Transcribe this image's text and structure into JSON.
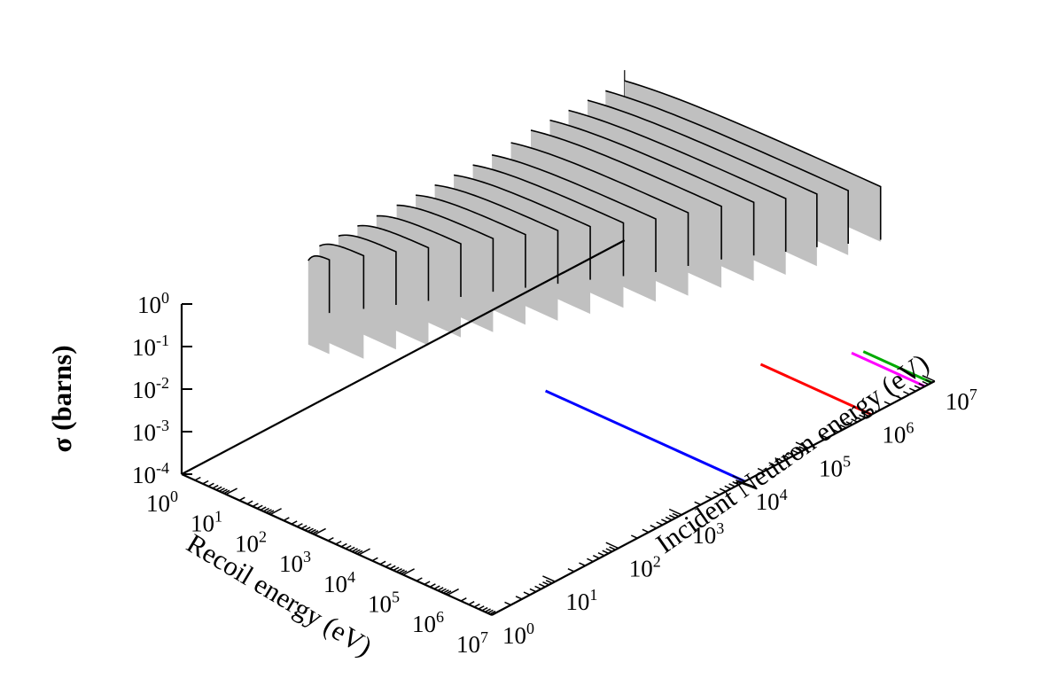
{
  "chart_data": {
    "type": "area",
    "title": "",
    "zlabel": "σ (barns)",
    "xlabel": "Recoil energy (eV)",
    "ylabel": "Incident Neutron energy (eV)",
    "scale": "log10",
    "x_range": [
      1,
      10000000
    ],
    "y_range": [
      1,
      10000000
    ],
    "z_range": [
      0.0001,
      1
    ],
    "x_ticks": [
      {
        "base": "10",
        "exp": "0"
      },
      {
        "base": "10",
        "exp": "1"
      },
      {
        "base": "10",
        "exp": "2"
      },
      {
        "base": "10",
        "exp": "3"
      },
      {
        "base": "10",
        "exp": "4"
      },
      {
        "base": "10",
        "exp": "5"
      },
      {
        "base": "10",
        "exp": "6"
      },
      {
        "base": "10",
        "exp": "7"
      }
    ],
    "y_ticks": [
      {
        "base": "10",
        "exp": "0"
      },
      {
        "base": "10",
        "exp": "1"
      },
      {
        "base": "10",
        "exp": "2"
      },
      {
        "base": "10",
        "exp": "3"
      },
      {
        "base": "10",
        "exp": "4"
      },
      {
        "base": "10",
        "exp": "5"
      },
      {
        "base": "10",
        "exp": "6"
      },
      {
        "base": "10",
        "exp": "7"
      }
    ],
    "z_ticks": [
      {
        "base": "10",
        "exp": "-4"
      },
      {
        "base": "10",
        "exp": "-3"
      },
      {
        "base": "10",
        "exp": "-2"
      },
      {
        "base": "10",
        "exp": "-1"
      },
      {
        "base": "10",
        "exp": "0"
      }
    ],
    "series_color": "#c0c0c0",
    "line_color": "#000000",
    "reference_lines": [
      {
        "incident_energy": 10000,
        "color": "#0000ff"
      },
      {
        "incident_energy": 1000000,
        "color": "#ff0000"
      },
      {
        "incident_energy": 7000000,
        "color": "#ff00ff"
      },
      {
        "incident_energy": 9000000,
        "color": "#00aa00"
      }
    ],
    "slices": [
      {
        "incident_energy": 100,
        "emax": 3,
        "sigma_max": 0.5,
        "sigma_min": 0.003
      },
      {
        "incident_energy": 150,
        "emax": 10,
        "sigma_max": 0.8,
        "sigma_min": 0.003
      },
      {
        "incident_energy": 300,
        "emax": 20,
        "sigma_max": 0.8,
        "sigma_min": 0.004
      },
      {
        "incident_energy": 600,
        "emax": 40,
        "sigma_max": 0.8,
        "sigma_min": 0.004
      },
      {
        "incident_energy": 1200,
        "emax": 80,
        "sigma_max": 0.8,
        "sigma_min": 0.005
      },
      {
        "incident_energy": 2500,
        "emax": 150,
        "sigma_max": 0.8,
        "sigma_min": 0.005
      },
      {
        "incident_energy": 5000,
        "emax": 300,
        "sigma_max": 0.8,
        "sigma_min": 0.006
      },
      {
        "incident_energy": 10000,
        "emax": 600,
        "sigma_max": 0.8,
        "sigma_min": 0.006
      },
      {
        "incident_energy": 20000,
        "emax": 1200,
        "sigma_max": 0.8,
        "sigma_min": 0.007
      },
      {
        "incident_energy": 40000,
        "emax": 2500,
        "sigma_max": 0.8,
        "sigma_min": 0.008
      },
      {
        "incident_energy": 80000,
        "emax": 5000,
        "sigma_max": 0.8,
        "sigma_min": 0.009
      },
      {
        "incident_energy": 160000,
        "emax": 10000,
        "sigma_max": 0.9,
        "sigma_min": 0.01
      },
      {
        "incident_energy": 330000,
        "emax": 20000,
        "sigma_max": 1.0,
        "sigma_min": 0.012
      },
      {
        "incident_energy": 660000,
        "emax": 40000,
        "sigma_max": 1.0,
        "sigma_min": 0.014
      },
      {
        "incident_energy": 1300000,
        "emax": 80000,
        "sigma_max": 1.0,
        "sigma_min": 0.016
      },
      {
        "incident_energy": 2600000,
        "emax": 150000,
        "sigma_max": 1.0,
        "sigma_min": 0.02
      },
      {
        "incident_energy": 5000000,
        "emax": 300000,
        "sigma_max": 1.0,
        "sigma_min": 0.03
      },
      {
        "incident_energy": 10000000,
        "emax": 600000,
        "sigma_max": 1.0,
        "sigma_min": 0.05
      }
    ]
  }
}
